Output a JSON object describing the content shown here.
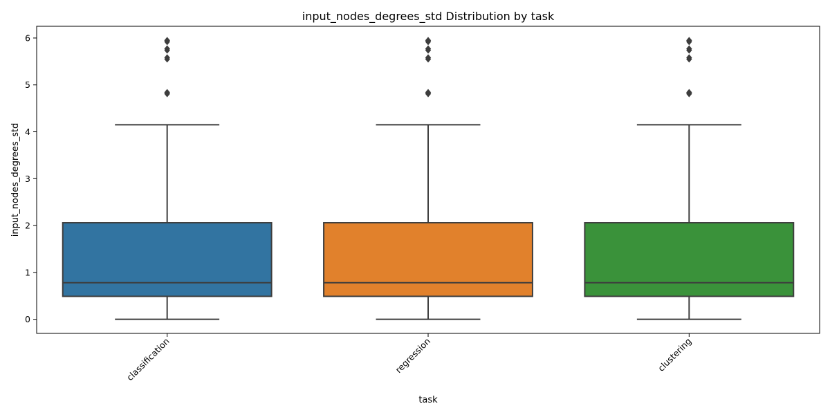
{
  "chart_data": {
    "type": "box",
    "title": "input_nodes_degrees_std Distribution by task",
    "xlabel": "task",
    "ylabel": "input_nodes_degrees_std",
    "ylim": [
      -0.3,
      6.25
    ],
    "yticks": [
      0,
      1,
      2,
      3,
      4,
      5,
      6
    ],
    "categories": [
      "classification",
      "regression",
      "clustering"
    ],
    "colors": [
      "#3274a1",
      "#e1812c",
      "#3a923a"
    ],
    "boxes": [
      {
        "category": "classification",
        "whisker_low": 0.0,
        "q1": 0.49,
        "median": 0.78,
        "q3": 2.06,
        "whisker_high": 4.15,
        "outliers": [
          4.81,
          4.84,
          5.55,
          5.58,
          5.74,
          5.77,
          5.92,
          5.95
        ]
      },
      {
        "category": "regression",
        "whisker_low": 0.0,
        "q1": 0.49,
        "median": 0.78,
        "q3": 2.06,
        "whisker_high": 4.15,
        "outliers": [
          4.81,
          4.84,
          5.55,
          5.58,
          5.74,
          5.77,
          5.92,
          5.95
        ]
      },
      {
        "category": "clustering",
        "whisker_low": 0.0,
        "q1": 0.49,
        "median": 0.78,
        "q3": 2.06,
        "whisker_high": 4.15,
        "outliers": [
          4.81,
          4.84,
          5.55,
          5.58,
          5.74,
          5.77,
          5.92,
          5.95
        ]
      }
    ]
  }
}
